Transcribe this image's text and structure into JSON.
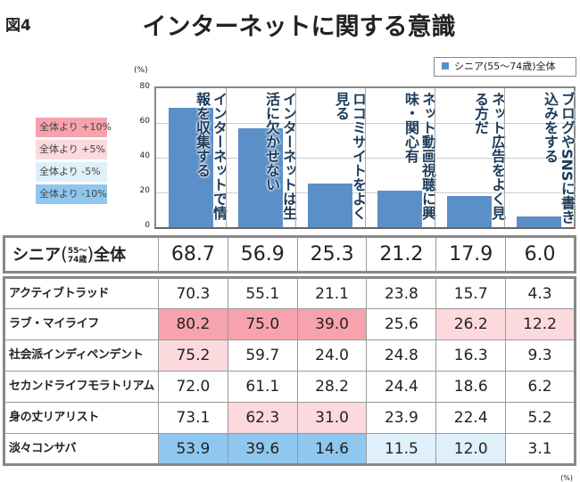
{
  "figure_label": "図4",
  "title": "インターネットに関する意識",
  "legend": "シニア(55〜74歳)全体",
  "color_key": [
    {
      "label": "全体より +10%",
      "color": "#f6a3ad"
    },
    {
      "label": "全体より +5%",
      "color": "#fbd9dd"
    },
    {
      "label": "全体より -5%",
      "color": "#dff0fb"
    },
    {
      "label": "全体より -10%",
      "color": "#8fc7ef"
    }
  ],
  "footer_unit": "(%)",
  "chart_data": {
    "type": "bar",
    "unit": "(%)",
    "ylim": [
      0,
      80
    ],
    "yticks": [
      "0",
      "20",
      "40",
      "60",
      "80"
    ],
    "grid": true,
    "legend_position": "top-right",
    "bar_color": "#5b8fc7",
    "categories": [
      "インターネットで情報を収集する",
      "インターネットは生活に欠かせない",
      "ロコミサイトをよく見る",
      "ネット動画視聴に興味・関心有",
      "ネット広告をよく見る方だ",
      "ブログやSNSに書き込みをする"
    ],
    "series": [
      {
        "name": "シニア(55〜74歳)全体",
        "values": [
          68.7,
          56.9,
          25.3,
          21.2,
          17.9,
          6.0
        ]
      }
    ]
  },
  "total_row": {
    "label_main": "シニア",
    "label_age_top": "55〜",
    "label_age_bottom": "74歳",
    "label_suffix": "全体",
    "values": [
      "68.7",
      "56.9",
      "25.3",
      "21.2",
      "17.9",
      "6.0"
    ]
  },
  "rows": [
    {
      "label": "アクティブトラッド",
      "values": [
        "70.3",
        "55.1",
        "21.1",
        "23.8",
        "15.7",
        "4.3"
      ],
      "levels": [
        "",
        "",
        "",
        "",
        "",
        ""
      ]
    },
    {
      "label": "ラブ・マイライフ",
      "values": [
        "80.2",
        "75.0",
        "39.0",
        "25.6",
        "26.2",
        "12.2"
      ],
      "levels": [
        "p10",
        "p10",
        "p10",
        "",
        "p5",
        "p5"
      ]
    },
    {
      "label": "社会派インディペンデント",
      "values": [
        "75.2",
        "59.7",
        "24.0",
        "24.8",
        "16.3",
        "9.3"
      ],
      "levels": [
        "p5",
        "",
        "",
        "",
        "",
        ""
      ]
    },
    {
      "label": "セカンドライフモラトリアム",
      "values": [
        "72.0",
        "61.1",
        "28.2",
        "24.4",
        "18.6",
        "6.2"
      ],
      "levels": [
        "",
        "",
        "",
        "",
        "",
        ""
      ]
    },
    {
      "label": "身の丈リアリスト",
      "values": [
        "73.1",
        "62.3",
        "31.0",
        "23.9",
        "22.4",
        "5.2"
      ],
      "levels": [
        "",
        "p5",
        "p5",
        "",
        "",
        ""
      ]
    },
    {
      "label": "淡々コンサバ",
      "values": [
        "53.9",
        "39.6",
        "14.6",
        "11.5",
        "12.0",
        "3.1"
      ],
      "levels": [
        "m10",
        "m10",
        "m10",
        "m5",
        "m5",
        ""
      ]
    }
  ]
}
